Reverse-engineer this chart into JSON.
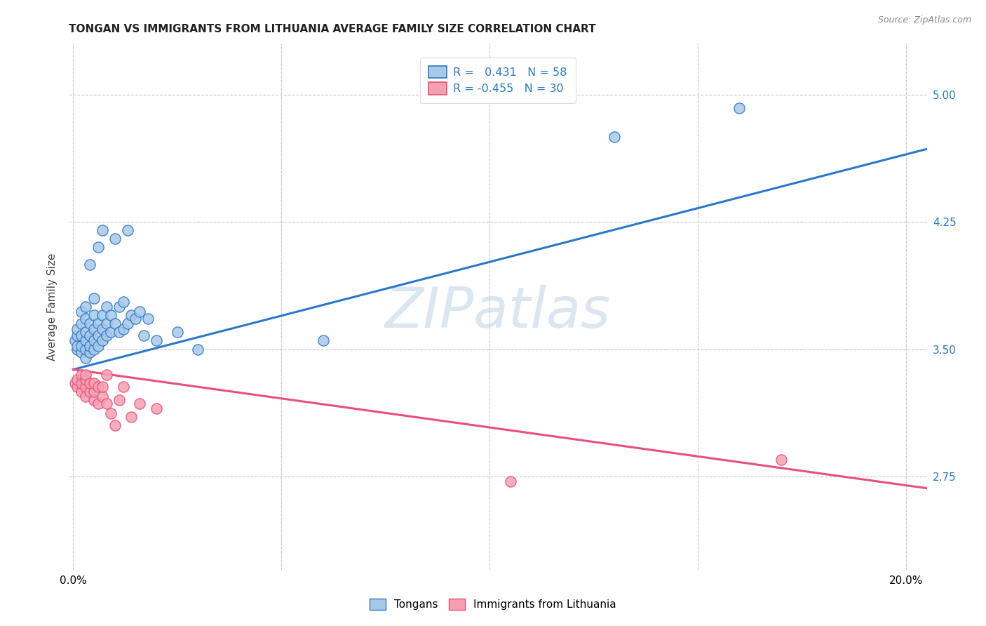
{
  "title": "TONGAN VS IMMIGRANTS FROM LITHUANIA AVERAGE FAMILY SIZE CORRELATION CHART",
  "source": "Source: ZipAtlas.com",
  "ylabel": "Average Family Size",
  "yticks": [
    2.75,
    3.5,
    4.25,
    5.0
  ],
  "ylim": [
    2.2,
    5.3
  ],
  "xlim": [
    -0.001,
    0.205
  ],
  "legend_blue_r": "0.431",
  "legend_blue_n": "58",
  "legend_pink_r": "-0.455",
  "legend_pink_n": "30",
  "legend_label_blue": "Tongans",
  "legend_label_pink": "Immigrants from Lithuania",
  "blue_color": "#a8c8e8",
  "pink_color": "#f4a0b0",
  "line_blue_color": "#2979c8",
  "line_pink_color": "#e8507a",
  "background_color": "#ffffff",
  "grid_color": "#c8c8c8",
  "blue_scatter_x": [
    0.0005,
    0.001,
    0.001,
    0.001,
    0.001,
    0.002,
    0.002,
    0.002,
    0.002,
    0.002,
    0.003,
    0.003,
    0.003,
    0.003,
    0.003,
    0.003,
    0.004,
    0.004,
    0.004,
    0.004,
    0.004,
    0.005,
    0.005,
    0.005,
    0.005,
    0.005,
    0.006,
    0.006,
    0.006,
    0.006,
    0.007,
    0.007,
    0.007,
    0.007,
    0.008,
    0.008,
    0.008,
    0.009,
    0.009,
    0.01,
    0.01,
    0.011,
    0.011,
    0.012,
    0.012,
    0.013,
    0.013,
    0.014,
    0.015,
    0.016,
    0.017,
    0.018,
    0.02,
    0.025,
    0.03,
    0.06,
    0.13,
    0.16
  ],
  "blue_scatter_y": [
    3.55,
    3.5,
    3.52,
    3.58,
    3.62,
    3.48,
    3.52,
    3.58,
    3.65,
    3.72,
    3.45,
    3.5,
    3.55,
    3.6,
    3.68,
    3.75,
    3.48,
    3.52,
    3.58,
    3.65,
    4.0,
    3.5,
    3.55,
    3.62,
    3.7,
    3.8,
    3.52,
    3.58,
    3.65,
    4.1,
    3.55,
    3.62,
    3.7,
    4.2,
    3.58,
    3.65,
    3.75,
    3.6,
    3.7,
    3.65,
    4.15,
    3.6,
    3.75,
    3.62,
    3.78,
    3.65,
    4.2,
    3.7,
    3.68,
    3.72,
    3.58,
    3.68,
    3.55,
    3.6,
    3.5,
    3.55,
    4.75,
    4.92
  ],
  "pink_scatter_x": [
    0.0005,
    0.001,
    0.001,
    0.002,
    0.002,
    0.002,
    0.003,
    0.003,
    0.003,
    0.003,
    0.004,
    0.004,
    0.005,
    0.005,
    0.005,
    0.006,
    0.006,
    0.007,
    0.007,
    0.008,
    0.008,
    0.009,
    0.01,
    0.011,
    0.012,
    0.014,
    0.016,
    0.02,
    0.105,
    0.17
  ],
  "pink_scatter_y": [
    3.3,
    3.28,
    3.32,
    3.25,
    3.3,
    3.35,
    3.22,
    3.28,
    3.32,
    3.35,
    3.25,
    3.3,
    3.2,
    3.25,
    3.3,
    3.28,
    3.18,
    3.22,
    3.28,
    3.35,
    3.18,
    3.12,
    3.05,
    3.2,
    3.28,
    3.1,
    3.18,
    3.15,
    2.72,
    2.85
  ],
  "blue_line_x": [
    0.0,
    0.205
  ],
  "blue_line_y": [
    3.38,
    4.68
  ],
  "pink_line_x": [
    0.0,
    0.205
  ],
  "pink_line_y": [
    3.38,
    2.68
  ],
  "xticks": [
    0.0,
    0.05,
    0.1,
    0.15,
    0.2
  ],
  "xticklabels": [
    "0.0%",
    "",
    "",
    "",
    "20.0%"
  ],
  "watermark_zip_color": "#9ab5cc",
  "watermark_atlas_color": "#b8ccdd"
}
